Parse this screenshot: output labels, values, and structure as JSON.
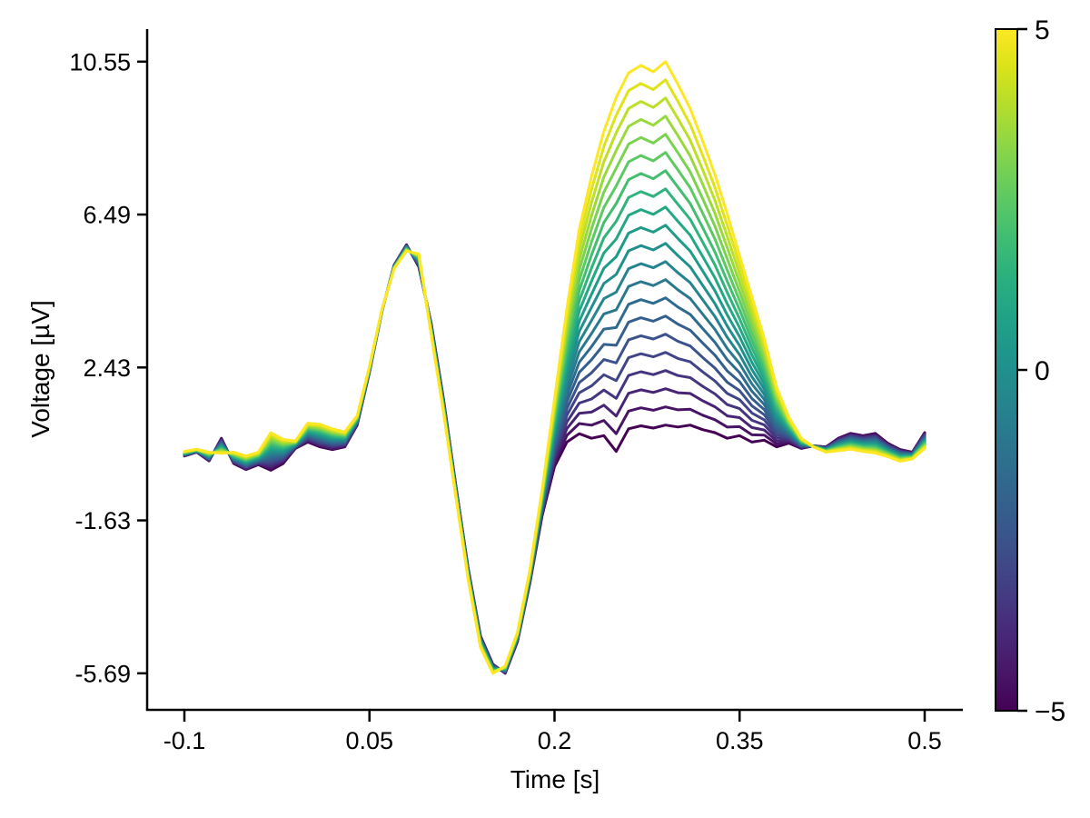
{
  "chart_data": {
    "type": "line",
    "title": "",
    "xlabel": "Time [s]",
    "ylabel": "Voltage [µV]",
    "x_axis": {
      "tick_values": [
        -0.1,
        0.05,
        0.2,
        0.35,
        0.5
      ],
      "tick_labels": [
        "-0.1",
        "0.05",
        "0.2",
        "0.35",
        "0.5"
      ],
      "range_shown": [
        -0.13,
        0.53
      ]
    },
    "y_axis": {
      "tick_values": [
        10.55,
        6.49,
        2.43,
        -1.63,
        -5.69
      ],
      "tick_labels": [
        "10.55",
        "6.49",
        "2.43",
        "-1.63",
        "-5.69"
      ],
      "range_shown": [
        -6.6,
        11.4
      ],
      "data_min": -5.69,
      "data_max": 10.55
    },
    "colorbar": {
      "min": -5,
      "max": 5,
      "tick_values": [
        5,
        0,
        -5
      ],
      "tick_labels": [
        "5",
        "0",
        "−5"
      ],
      "colormap": "viridis",
      "top_color": "#fde725",
      "mid_color": "#21918c",
      "bottom_color": "#440154"
    },
    "grid": false,
    "legend": "colorbar-right",
    "n_lines": 21,
    "levels": [
      -5,
      -4.5,
      -4,
      -3.5,
      -3,
      -2.5,
      -2,
      -1.5,
      -1,
      -0.5,
      0,
      0.5,
      1,
      1.5,
      2,
      2.5,
      3,
      3.5,
      4,
      4.5,
      5
    ],
    "mix_rule": "line(level) = base_line + ((level + 5) / 10) * (top_line - base_line); color = viridis((level + 5) / 10)",
    "x": [
      -0.1,
      -0.09,
      -0.08,
      -0.07,
      -0.06,
      -0.05,
      -0.04,
      -0.03,
      -0.02,
      -0.01,
      0.0,
      0.01,
      0.02,
      0.03,
      0.04,
      0.05,
      0.06,
      0.07,
      0.08,
      0.09,
      0.1,
      0.11,
      0.12,
      0.13,
      0.14,
      0.15,
      0.16,
      0.17,
      0.18,
      0.19,
      0.2,
      0.21,
      0.22,
      0.23,
      0.24,
      0.25,
      0.26,
      0.27,
      0.28,
      0.29,
      0.3,
      0.31,
      0.32,
      0.33,
      0.34,
      0.35,
      0.36,
      0.37,
      0.38,
      0.39,
      0.4,
      0.41,
      0.42,
      0.43,
      0.44,
      0.45,
      0.46,
      0.47,
      0.48,
      0.49,
      0.5
    ],
    "base_line": [
      0.08,
      0.18,
      -0.05,
      0.55,
      -0.12,
      -0.28,
      -0.15,
      -0.3,
      -0.12,
      0.28,
      0.45,
      0.32,
      0.25,
      0.32,
      0.9,
      2.3,
      3.9,
      5.15,
      5.69,
      5.1,
      3.6,
      1.6,
      -0.7,
      -2.9,
      -4.7,
      -5.45,
      -5.69,
      -4.85,
      -3.3,
      -1.5,
      -0.2,
      0.45,
      0.67,
      0.55,
      0.62,
      0.2,
      0.8,
      0.88,
      0.82,
      0.9,
      0.85,
      0.9,
      0.78,
      0.7,
      0.55,
      0.62,
      0.45,
      0.5,
      0.32,
      0.42,
      0.28,
      0.35,
      0.32,
      0.55,
      0.68,
      0.62,
      0.68,
      0.42,
      0.25,
      0.18,
      0.7
    ],
    "top_line": [
      0.2,
      0.26,
      0.18,
      0.15,
      0.18,
      0.08,
      0.18,
      0.7,
      0.52,
      0.48,
      0.95,
      0.92,
      0.8,
      0.72,
      1.15,
      2.45,
      3.95,
      5.05,
      5.52,
      5.45,
      3.3,
      1.25,
      -1.0,
      -3.2,
      -5.0,
      -5.69,
      -5.5,
      -4.6,
      -2.95,
      -0.8,
      1.6,
      4.0,
      6.1,
      7.5,
      8.7,
      9.6,
      10.25,
      10.45,
      10.28,
      10.55,
      9.95,
      9.3,
      8.45,
      7.55,
      6.5,
      5.4,
      4.3,
      3.2,
      1.9,
      1.1,
      0.55,
      0.32,
      0.18,
      0.22,
      0.26,
      0.2,
      0.16,
      0.06,
      -0.06,
      0.0,
      0.28
    ],
    "viridis_anchors": [
      "#440154",
      "#481567",
      "#482677",
      "#453781",
      "#404788",
      "#39568c",
      "#33638d",
      "#2d708e",
      "#287d8e",
      "#238a8d",
      "#1f968b",
      "#20a387",
      "#29af7f",
      "#3cbb75",
      "#55c667",
      "#73d055",
      "#95d840",
      "#b8de29",
      "#dce319",
      "#fde725"
    ]
  }
}
